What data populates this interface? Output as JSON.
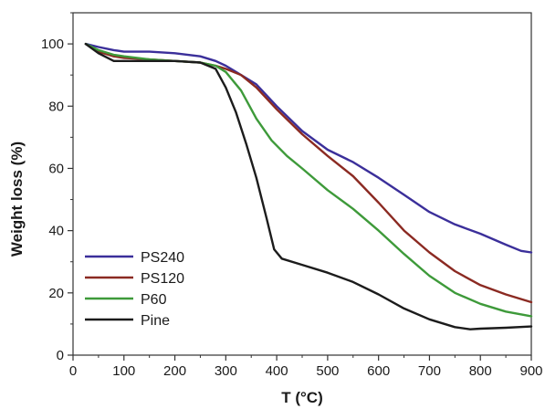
{
  "chart_data": {
    "type": "line",
    "xlabel": "T (°C)",
    "ylabel": "Weight loss (%)",
    "xlim": [
      0,
      900
    ],
    "ylim": [
      0,
      110
    ],
    "xticks": [
      0,
      100,
      200,
      300,
      400,
      500,
      600,
      700,
      800,
      900
    ],
    "yticks": [
      0,
      20,
      40,
      60,
      80,
      100
    ],
    "grid": false,
    "legend_position": "bottom-left",
    "series": [
      {
        "name": "PS240",
        "color": "#3b2f9a",
        "x": [
          25,
          50,
          80,
          100,
          150,
          200,
          250,
          280,
          300,
          330,
          360,
          400,
          450,
          500,
          550,
          600,
          650,
          700,
          750,
          800,
          850,
          880,
          900
        ],
        "y": [
          100,
          99,
          98,
          97.5,
          97.5,
          97,
          96,
          94.5,
          93,
          90,
          87,
          80,
          72,
          66,
          62,
          57,
          51.5,
          46,
          42,
          39,
          35.5,
          33.5,
          33
        ]
      },
      {
        "name": "PS120",
        "color": "#8b2a22",
        "x": [
          25,
          50,
          80,
          100,
          150,
          200,
          250,
          280,
          300,
          330,
          360,
          400,
          450,
          500,
          550,
          600,
          650,
          700,
          750,
          800,
          850,
          900
        ],
        "y": [
          100,
          97.5,
          96,
          95.5,
          95,
          94.5,
          94,
          93,
          92,
          90,
          86,
          79,
          71,
          64,
          57.5,
          49,
          40,
          33,
          27,
          22.5,
          19.5,
          17
        ]
      },
      {
        "name": "P60",
        "color": "#3e9a3a",
        "x": [
          25,
          50,
          80,
          100,
          150,
          200,
          250,
          280,
          300,
          330,
          360,
          390,
          420,
          450,
          500,
          550,
          600,
          650,
          700,
          750,
          800,
          850,
          900
        ],
        "y": [
          100,
          98,
          96.5,
          96,
          95,
          94.5,
          94,
          93,
          91,
          85,
          76,
          69,
          64,
          60,
          53,
          47,
          40,
          32.5,
          25.5,
          20,
          16.5,
          14,
          12.5
        ]
      },
      {
        "name": "Pine",
        "color": "#1c1c1c",
        "x": [
          25,
          50,
          80,
          100,
          150,
          200,
          250,
          280,
          300,
          320,
          340,
          360,
          380,
          395,
          410,
          450,
          500,
          550,
          600,
          650,
          700,
          750,
          780,
          800,
          850,
          900
        ],
        "y": [
          100,
          97,
          94.5,
          94.5,
          94.5,
          94.5,
          94,
          92,
          86,
          78,
          68,
          57,
          44,
          34,
          31,
          29,
          26.5,
          23.5,
          19.5,
          15,
          11.5,
          9,
          8.3,
          8.5,
          8.8,
          9.2
        ]
      }
    ]
  }
}
